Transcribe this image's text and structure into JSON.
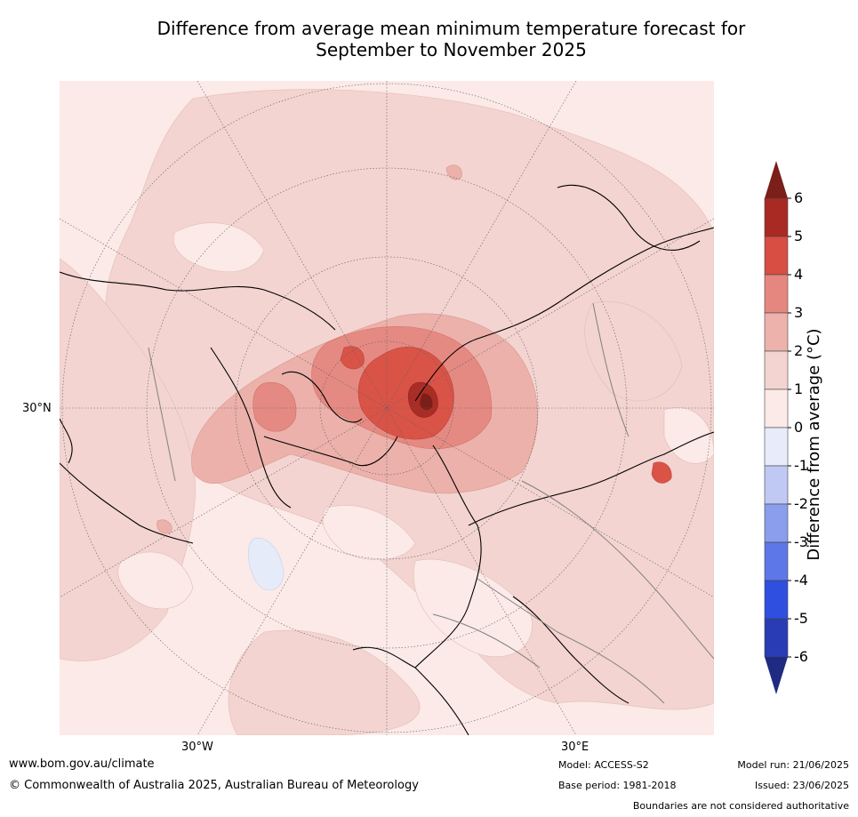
{
  "header": {
    "title_line1": "Difference from average mean minimum temperature forecast for",
    "title_line2": "September to November 2025"
  },
  "map": {
    "projection": "North polar stereographic",
    "graticule_labels": {
      "lat_left": "30°N",
      "lon_left": "30°W",
      "lon_right": "30°E"
    },
    "colors": {
      "0_to_1": "#fbeae7",
      "1_to_2": "#f3d4d0",
      "2_to_3": "#ebb1aa",
      "3_to_4": "#e48a83",
      "4_to_5": "#da5347",
      "5_to_6": "#aa2d25",
      "above_6": "#7a1f19",
      "minus1_to_0": "#e6ebfa"
    }
  },
  "colorbar": {
    "label": "Difference from average (°C)",
    "ticks": [
      "6",
      "5",
      "4",
      "3",
      "2",
      "1",
      "0",
      "-1",
      "-2",
      "-3",
      "-4",
      "-5",
      "-6"
    ],
    "bands": [
      {
        "range": "above 6",
        "color": "#7a1f19"
      },
      {
        "range": "5 to 6",
        "color": "#a82a23"
      },
      {
        "range": "4 to 5",
        "color": "#d84e42"
      },
      {
        "range": "3 to 4",
        "color": "#e5877f"
      },
      {
        "range": "2 to 3",
        "color": "#ecb2ab"
      },
      {
        "range": "1 to 2",
        "color": "#f3d4d0"
      },
      {
        "range": "0 to 1",
        "color": "#fbeae7"
      },
      {
        "range": "-1 to 0",
        "color": "#e8ecfa"
      },
      {
        "range": "-2 to -1",
        "color": "#c0c9f3"
      },
      {
        "range": "-3 to -2",
        "color": "#8b9ded"
      },
      {
        "range": "-4 to -3",
        "color": "#5d76e8"
      },
      {
        "range": "-5 to -4",
        "color": "#2f4fe0"
      },
      {
        "range": "-6 to -5",
        "color": "#2a3cb5"
      },
      {
        "range": "below -6",
        "color": "#1f2b80"
      }
    ]
  },
  "footer": {
    "website": "www.bom.gov.au/climate",
    "copyright": "© Commonwealth of Australia 2025, Australian Bureau of Meteorology",
    "model": "Model: ACCESS-S2",
    "base_period": "Base period: 1981-2018",
    "model_run": "Model run: 21/06/2025",
    "issued": "Issued: 23/06/2025",
    "disclaimer": "Boundaries are not considered authoritative"
  }
}
